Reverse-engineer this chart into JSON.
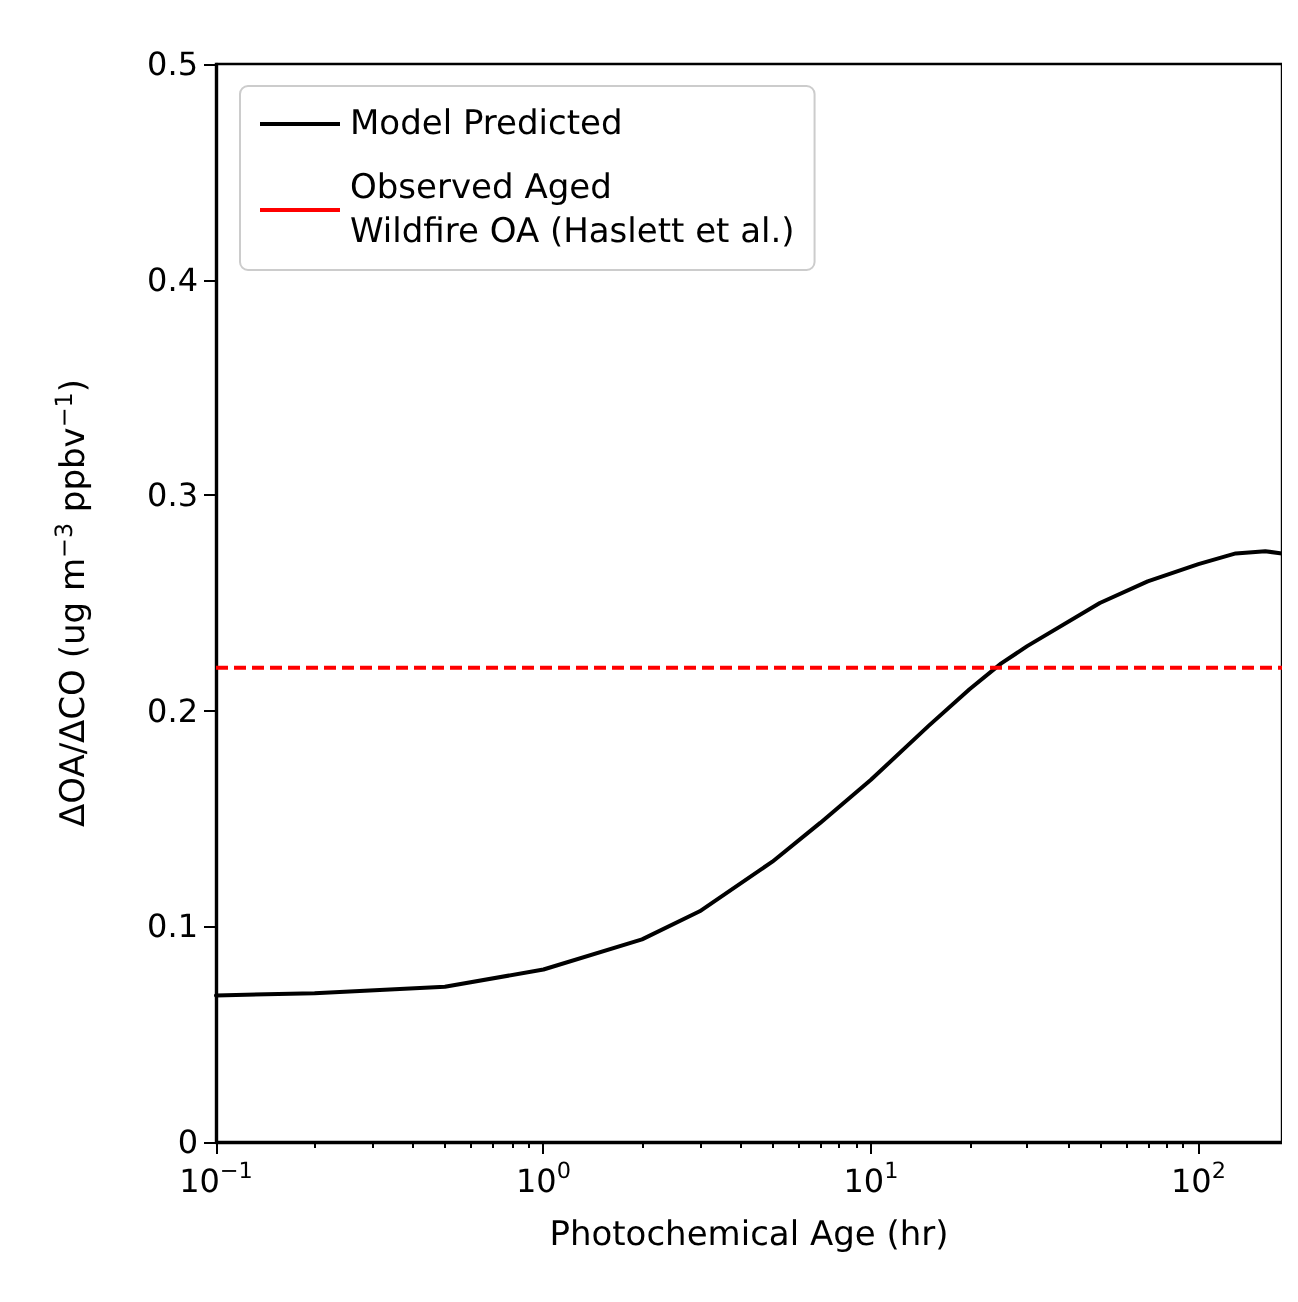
{
  "chart_data": {
    "type": "line",
    "xlabel": "Photochemical Age (hr)",
    "ylabel": "ΔOA/ΔCO (ug m$^{−3}$ ppbv$^{−1}$)",
    "log": "x",
    "xlim": [
      0.1,
      180
    ],
    "xticks": [
      {
        "value": 0.1,
        "label": "10$^{−1}$"
      },
      {
        "value": 1,
        "label": "10$^{0}$"
      },
      {
        "value": 10,
        "label": "10$^{1}$"
      },
      {
        "value": 100,
        "label": "10$^{2}$"
      }
    ],
    "ylim": [
      0,
      0.5
    ],
    "yticks": [
      0,
      0.1,
      0.2,
      0.3,
      0.4,
      0.5
    ],
    "grid": false,
    "legend": "top left",
    "marker": "none",
    "line_style": "solid",
    "series": [
      {
        "name": "Model Predicted",
        "color": "#000000",
        "x": [
          0.1,
          0.2,
          0.5,
          1,
          2,
          3,
          5,
          7,
          10,
          15,
          20,
          25,
          30,
          50,
          70,
          100,
          130,
          160,
          180
        ],
        "values": [
          0.068,
          0.069,
          0.072,
          0.08,
          0.094,
          0.107,
          0.13,
          0.148,
          0.168,
          0.193,
          0.21,
          0.222,
          0.23,
          0.25,
          0.26,
          0.268,
          0.273,
          0.274,
          0.273
        ]
      }
    ],
    "ref_lines": [
      {
        "axis": "y",
        "value": 0.22,
        "label": "Observed Aged\nWildfire OA (Haslett et al.)",
        "color": "#ff0000",
        "line_style": "dashed"
      }
    ]
  }
}
